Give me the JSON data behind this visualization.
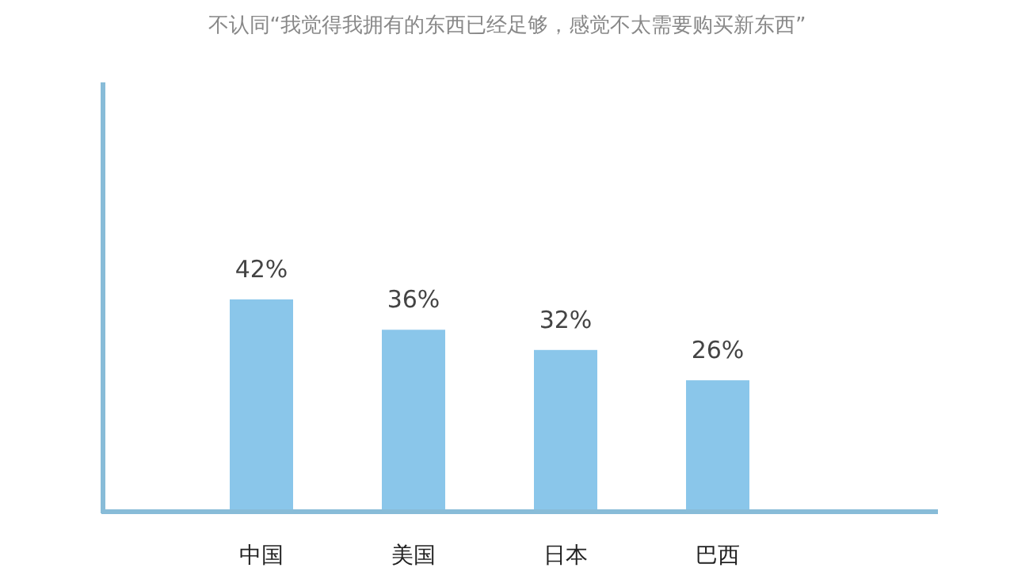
{
  "chart_data": {
    "type": "bar",
    "title": "不认同“我觉得我拥有的东西已经足够，感觉不太需要购买新东西”",
    "categories": [
      "中国",
      "美国",
      "日本",
      "巴西"
    ],
    "values": [
      42,
      36,
      32,
      26
    ],
    "value_labels": [
      "42%",
      "36%",
      "32%",
      "26%"
    ],
    "color": "#8ac6ea"
  }
}
